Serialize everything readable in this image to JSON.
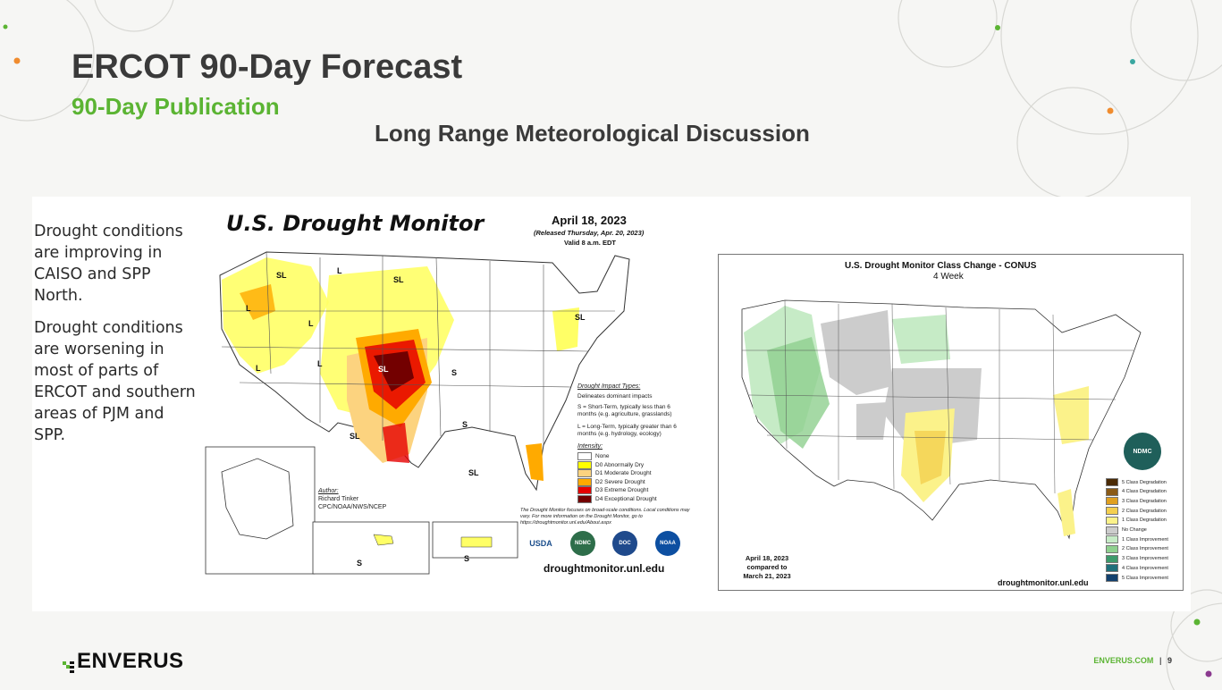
{
  "slide": {
    "title": "ERCOT 90-Day Forecast",
    "subtitle": "90-Day Publication",
    "section_heading": "Long Range Meteorological Discussion",
    "page_number": "9",
    "footer_site": "ENVERUS.COM",
    "footer_sep": "|",
    "brand": "ENVERUS",
    "accent_color": "#5bb433"
  },
  "bullets": [
    "Drought conditions are improving in CAISO and SPP North.",
    "Drought conditions are worsening in most of parts of ERCOT and southern areas of PJM and SPP."
  ],
  "drought_map": {
    "title": "U.S. Drought Monitor",
    "date": "April 18, 2023",
    "released": "(Released Thursday, Apr. 20, 2023)",
    "valid": "Valid 8 a.m. EDT",
    "impact_title": "Drought Impact Types:",
    "impact_items": [
      "Delineates dominant impacts",
      "S = Short-Term, typically less than 6 months (e.g. agriculture, grasslands)",
      "L = Long-Term, typically greater than 6 months (e.g. hydrology, ecology)"
    ],
    "intensity_title": "Intensity:",
    "intensity": [
      {
        "label": "None",
        "color": "#ffffff"
      },
      {
        "label": "D0 Abnormally Dry",
        "color": "#ffff00"
      },
      {
        "label": "D1 Moderate Drought",
        "color": "#fcd37f"
      },
      {
        "label": "D2 Severe Drought",
        "color": "#ffaa00"
      },
      {
        "label": "D3 Extreme Drought",
        "color": "#e60000"
      },
      {
        "label": "D4 Exceptional Drought",
        "color": "#730000"
      }
    ],
    "author_label": "Author:",
    "author": "Richard Tinker",
    "author_org": "CPC/NOAA/NWS/NCEP",
    "note": "The Drought Monitor focuses on broad-scale conditions. Local conditions may vary. For more information on the Drought Monitor, go to https://droughtmonitor.unl.edu/About.aspx",
    "url": "droughtmonitor.unl.edu",
    "region_labels": [
      "SL",
      "L",
      "SL",
      "L",
      "L",
      "L",
      "L",
      "SL",
      "SL",
      "S",
      "SL",
      "S",
      "S",
      "S",
      "SL"
    ],
    "seals": [
      "USDA",
      "NDMC",
      "DOC",
      "NOAA"
    ]
  },
  "change_map": {
    "title": "U.S. Drought Monitor Class Change - CONUS",
    "subtitle": "4 Week",
    "compare_line1": "April 18, 2023",
    "compare_line2": "compared to",
    "compare_line3": "March 21, 2023",
    "url": "droughtmonitor.unl.edu",
    "seal": "NDMC",
    "legend": [
      {
        "label": "5 Class Degradation",
        "color": "#4a2a05"
      },
      {
        "label": "4 Class Degradation",
        "color": "#8a5a17"
      },
      {
        "label": "3 Class Degradation",
        "color": "#e0a020"
      },
      {
        "label": "2 Class Degradation",
        "color": "#f4cf4f"
      },
      {
        "label": "1 Class Degradation",
        "color": "#fbf28a"
      },
      {
        "label": "No Change",
        "color": "#cccccc"
      },
      {
        "label": "1 Class Improvement",
        "color": "#c6ebc6"
      },
      {
        "label": "2 Class Improvement",
        "color": "#8fd08f"
      },
      {
        "label": "3 Class Improvement",
        "color": "#3d9a6b"
      },
      {
        "label": "4 Class Improvement",
        "color": "#1e6f7a"
      },
      {
        "label": "5 Class Improvement",
        "color": "#12406e"
      }
    ]
  }
}
